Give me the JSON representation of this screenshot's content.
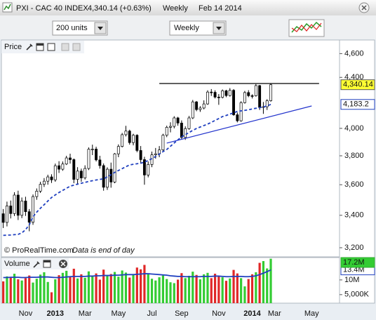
{
  "header": {
    "title": "PXI - CAC 40 INDEX",
    "quote": "4,340.14 (+0.63%)",
    "period": "Weekly",
    "date": "Feb 14 2014"
  },
  "toolbar": {
    "units": "200 units",
    "period": "Weekly"
  },
  "chart_data": [
    {
      "type": "candlestick",
      "title": "Price",
      "log_scale": true,
      "ylim": [
        3150,
        4700
      ],
      "yticks": [
        {
          "value": 3200,
          "label": "3,200"
        },
        {
          "value": 3400,
          "label": "3,400"
        },
        {
          "value": 3600,
          "label": "3,600"
        },
        {
          "value": 3800,
          "label": "3,800"
        },
        {
          "value": 4000,
          "label": "4,000"
        },
        {
          "value": 4400,
          "label": "4,400"
        },
        {
          "value": 4600,
          "label": "4,600"
        }
      ],
      "up_color": "#ffffff",
      "down_color": "#000000",
      "label_color": "#ffff33",
      "open": [
        3410,
        3355,
        3460,
        3411,
        3531,
        3400,
        3492,
        3423,
        3356,
        3521,
        3557,
        3603,
        3624,
        3653,
        3633,
        3730,
        3706,
        3742,
        3785,
        3773,
        3636,
        3693,
        3646,
        3711,
        3847,
        3848,
        3771,
        3731,
        3583,
        3706,
        3618,
        3814,
        3867,
        3953,
        3980,
        3895,
        3949,
        3838,
        3773,
        3666,
        3739,
        3807,
        3814,
        3842,
        3949,
        4008,
        4015,
        4079,
        4040,
        3933,
        3998,
        4079,
        4203,
        4143,
        4155,
        4187,
        4281,
        4279,
        4241,
        4239,
        4291,
        4253,
        4295,
        4103,
        4057,
        4197,
        4277,
        4252,
        4251,
        4333,
        4160,
        4165,
        4212,
        null,
        null,
        null,
        null,
        null,
        null,
        null,
        null,
        null,
        null,
        null,
        null,
        null,
        null,
        null,
        null,
        null,
        null
      ],
      "high": [
        3440,
        3488,
        3495,
        3550,
        3560,
        3515,
        3520,
        3440,
        3535,
        3575,
        3620,
        3645,
        3668,
        3671,
        3745,
        3762,
        3760,
        3800,
        3815,
        3781,
        3720,
        3710,
        3733,
        3860,
        3880,
        3865,
        3800,
        3746,
        3719,
        3752,
        3820,
        3882,
        3966,
        4019,
        3990,
        3960,
        3956,
        3870,
        3793,
        3760,
        3830,
        3856,
        3870,
        3960,
        4020,
        4046,
        4092,
        4087,
        4060,
        4015,
        4094,
        4218,
        4210,
        4170,
        4215,
        4295,
        4305,
        4295,
        4265,
        4302,
        4299,
        4313,
        4305,
        4120,
        4208,
        4290,
        4296,
        4263,
        4345,
        4338,
        4202,
        4224,
        4353,
        null,
        null,
        null,
        null,
        null,
        null,
        null,
        null,
        null,
        null,
        null,
        null,
        null,
        null,
        null,
        null,
        null,
        null
      ],
      "low": [
        3320,
        3330,
        3380,
        3395,
        3370,
        3382,
        3396,
        3300,
        3340,
        3500,
        3545,
        3585,
        3600,
        3612,
        3620,
        3680,
        3695,
        3735,
        3745,
        3610,
        3600,
        3620,
        3635,
        3700,
        3805,
        3760,
        3710,
        3560,
        3565,
        3580,
        3610,
        3790,
        3860,
        3940,
        3880,
        3875,
        3825,
        3745,
        3600,
        3650,
        3720,
        3780,
        3790,
        3835,
        3935,
        3970,
        4000,
        4020,
        3920,
        3915,
        3990,
        4070,
        4130,
        4125,
        4145,
        4180,
        4250,
        4230,
        4180,
        4230,
        4240,
        4245,
        4095,
        4045,
        4050,
        4190,
        4240,
        4230,
        4245,
        4140,
        4110,
        4140,
        4205,
        null,
        null,
        null,
        null,
        null,
        null,
        null,
        null,
        null,
        null,
        null,
        null,
        null,
        null,
        null,
        null,
        null,
        null
      ],
      "close": [
        3355,
        3460,
        3411,
        3531,
        3400,
        3492,
        3423,
        3356,
        3521,
        3557,
        3603,
        3624,
        3653,
        3633,
        3730,
        3706,
        3742,
        3785,
        3773,
        3636,
        3693,
        3646,
        3711,
        3847,
        3848,
        3771,
        3731,
        3583,
        3706,
        3618,
        3814,
        3867,
        3953,
        3980,
        3895,
        3949,
        3838,
        3773,
        3666,
        3739,
        3807,
        3814,
        3842,
        3949,
        4008,
        4015,
        4079,
        4040,
        3933,
        3998,
        4079,
        4203,
        4143,
        4155,
        4187,
        4281,
        4279,
        4241,
        4239,
        4291,
        4253,
        4295,
        4103,
        4057,
        4197,
        4277,
        4252,
        4251,
        4333,
        4160,
        4165,
        4212,
        4340.14,
        null,
        null,
        null,
        null,
        null,
        null,
        null,
        null,
        null,
        null,
        null,
        null,
        null,
        null,
        null,
        null,
        null,
        null
      ],
      "close_labels": [
        null,
        null,
        null,
        null,
        null,
        null,
        null,
        null,
        null,
        null,
        null,
        null,
        null,
        null,
        null,
        null,
        null,
        null,
        null,
        null,
        null,
        null,
        null,
        null,
        null,
        null,
        null,
        null,
        null,
        null,
        null,
        null,
        null,
        null,
        null,
        null,
        null,
        null,
        null,
        null,
        null,
        null,
        null,
        null,
        null,
        null,
        null,
        null,
        null,
        null,
        null,
        null,
        null,
        null,
        null,
        null,
        null,
        null,
        null,
        null,
        null,
        null,
        null,
        null,
        null,
        null,
        null,
        null,
        null,
        null,
        null,
        null,
        "4,340.14",
        null,
        null,
        null,
        null,
        null,
        null,
        null,
        null,
        null,
        null,
        null,
        null,
        null,
        null,
        null,
        null,
        null,
        null
      ],
      "lines": [
        {
          "color": "#1f3fbf",
          "dashed": true,
          "values": [
            3275,
            3276,
            3277,
            3279,
            3281,
            3290,
            3310,
            3340,
            3390,
            3420,
            3445,
            3468,
            3492,
            3515,
            3532,
            3548,
            3562,
            3576,
            3590,
            3597,
            3604,
            3610,
            3616,
            3622,
            3627,
            3632,
            3636,
            3640,
            3653,
            3668,
            3684,
            3697,
            3710,
            3723,
            3736,
            3740,
            3744,
            3748,
            3755,
            3767,
            3780,
            3795,
            3812,
            3830,
            3845,
            3868,
            3892,
            3915,
            3937,
            3953,
            3969,
            3985,
            3999,
            4010,
            4021,
            4032,
            4045,
            4060,
            4074,
            4089,
            4098,
            4108,
            4118,
            4129,
            4133,
            4137,
            4141,
            4148,
            4153,
            4158,
            4163,
            4172,
            4183.2,
            null,
            null,
            null,
            null,
            null,
            null,
            null,
            null,
            null,
            null,
            null,
            null,
            null,
            null,
            null,
            null,
            null,
            null
          ],
          "value_labels": [
            null,
            null,
            null,
            null,
            null,
            null,
            null,
            null,
            null,
            null,
            null,
            null,
            null,
            null,
            null,
            null,
            null,
            null,
            null,
            null,
            null,
            null,
            null,
            null,
            null,
            null,
            null,
            null,
            null,
            null,
            null,
            null,
            null,
            null,
            null,
            null,
            null,
            null,
            null,
            null,
            null,
            null,
            null,
            null,
            null,
            null,
            null,
            null,
            null,
            null,
            null,
            null,
            null,
            null,
            null,
            null,
            null,
            null,
            null,
            null,
            null,
            null,
            null,
            null,
            null,
            null,
            null,
            null,
            null,
            null,
            null,
            null,
            "4,183.2",
            null,
            null,
            null,
            null,
            null,
            null,
            null,
            null,
            null,
            null,
            null,
            null,
            null,
            null,
            null,
            null,
            null,
            null
          ]
        }
      ],
      "trendlines": [
        {
          "color": "#000000",
          "x": [
            42,
            85
          ],
          "values": [
            4350,
            4350
          ]
        },
        {
          "color": "#2233cc",
          "x": [
            44,
            83
          ],
          "values": [
            3891,
            4171
          ]
        }
      ],
      "source": "© ProRealTime.com",
      "note": "Data is end of day"
    },
    {
      "type": "bar",
      "title": "Volume",
      "ylim": [
        2100000,
        17600000
      ],
      "yticks": [
        {
          "value": 5000000,
          "label": "5,000K"
        },
        {
          "value": 10000000,
          "label": "10M"
        }
      ],
      "up_color": "#33cc33",
      "down_color": "#e02828",
      "categories": [
        null,
        null,
        null,
        null,
        null,
        null,
        "Nov",
        null,
        null,
        null,
        null,
        null,
        null,
        null,
        "2013",
        null,
        null,
        null,
        null,
        null,
        null,
        null,
        "Mar",
        null,
        null,
        null,
        null,
        null,
        null,
        null,
        null,
        "May",
        null,
        null,
        null,
        null,
        null,
        null,
        null,
        null,
        "Jul",
        null,
        null,
        null,
        null,
        null,
        null,
        null,
        "Sep",
        null,
        null,
        null,
        null,
        null,
        null,
        null,
        null,
        null,
        "Nov",
        null,
        null,
        null,
        null,
        null,
        null,
        null,
        null,
        "2014",
        null,
        null,
        null,
        null,
        null,
        "Mar",
        null,
        null,
        null,
        null,
        null,
        null,
        null,
        null,
        null,
        "May",
        null,
        null,
        null,
        null,
        null,
        null,
        null
      ],
      "values": [
        9500000,
        11200000,
        10800000,
        12100000,
        10200000,
        9800000,
        10600000,
        11500000,
        9100000,
        10400000,
        11800000,
        12600000,
        9300000,
        5800000,
        10200000,
        11600000,
        12400000,
        13100000,
        11000000,
        13800000,
        10500000,
        11900000,
        10700000,
        12900000,
        11300000,
        12200000,
        10100000,
        13500000,
        11400000,
        12000000,
        12700000,
        11100000,
        13200000,
        12500000,
        10800000,
        11700000,
        14200000,
        13600000,
        15100000,
        11900000,
        10400000,
        9800000,
        10900000,
        11500000,
        10300000,
        9200000,
        8900000,
        10100000,
        12300000,
        10600000,
        11400000,
        12800000,
        11700000,
        10200000,
        11900000,
        12400000,
        10600000,
        12100000,
        11300000,
        10900000,
        9700000,
        10500000,
        13400000,
        12200000,
        10600000,
        7800000,
        10300000,
        11900000,
        12600000,
        15800000,
        16400000,
        13900000,
        17200000,
        null,
        null,
        null,
        null,
        null,
        null,
        null,
        null,
        null,
        null,
        null,
        null,
        null,
        null,
        null,
        null,
        null,
        null
      ],
      "value_labels": [
        null,
        null,
        null,
        null,
        null,
        null,
        null,
        null,
        null,
        null,
        null,
        null,
        null,
        null,
        null,
        null,
        null,
        null,
        null,
        null,
        null,
        null,
        null,
        null,
        null,
        null,
        null,
        null,
        null,
        null,
        null,
        null,
        null,
        null,
        null,
        null,
        null,
        null,
        null,
        null,
        null,
        null,
        null,
        null,
        null,
        null,
        null,
        null,
        null,
        null,
        null,
        null,
        null,
        null,
        null,
        null,
        null,
        null,
        null,
        null,
        null,
        null,
        null,
        null,
        null,
        null,
        null,
        null,
        null,
        null,
        null,
        null,
        "17.2M",
        null,
        null,
        null,
        null,
        null,
        null,
        null,
        null,
        null,
        null,
        null,
        null,
        null,
        null,
        null,
        null,
        null,
        null
      ],
      "lines": [
        {
          "color": "#1f3fbf",
          "dashed": false,
          "values": [
            10800000,
            10800000,
            10900000,
            10900000,
            10900000,
            10800000,
            10800000,
            10900000,
            10900000,
            10900000,
            11000000,
            11000000,
            11000000,
            10900000,
            10800000,
            10800000,
            10900000,
            11000000,
            11100000,
            11200000,
            11200000,
            11200000,
            11200000,
            11300000,
            11300000,
            11400000,
            11400000,
            11500000,
            11500000,
            11500000,
            11600000,
            11600000,
            11700000,
            11800000,
            11800000,
            11800000,
            11900000,
            12000000,
            12100000,
            12100000,
            12000000,
            11900000,
            11800000,
            11700000,
            11600000,
            11400000,
            11300000,
            11200000,
            11200000,
            11100000,
            11100000,
            11100000,
            11100000,
            11100000,
            11200000,
            11200000,
            11200000,
            11300000,
            11300000,
            11200000,
            11100000,
            11100000,
            11200000,
            11200000,
            11200000,
            11100000,
            11100000,
            11200000,
            11400000,
            11800000,
            12300000,
            12800000,
            13400000,
            null,
            null,
            null,
            null,
            null,
            null,
            null,
            null,
            null,
            null,
            null,
            null,
            null,
            null,
            null,
            null,
            null,
            null
          ],
          "value_labels": [
            null,
            null,
            null,
            null,
            null,
            null,
            null,
            null,
            null,
            null,
            null,
            null,
            null,
            null,
            null,
            null,
            null,
            null,
            null,
            null,
            null,
            null,
            null,
            null,
            null,
            null,
            null,
            null,
            null,
            null,
            null,
            null,
            null,
            null,
            null,
            null,
            null,
            null,
            null,
            null,
            null,
            null,
            null,
            null,
            null,
            null,
            null,
            null,
            null,
            null,
            null,
            null,
            null,
            null,
            null,
            null,
            null,
            null,
            null,
            null,
            null,
            null,
            null,
            null,
            null,
            null,
            null,
            null,
            null,
            null,
            null,
            null,
            "13.4M",
            null,
            null,
            null,
            null,
            null,
            null,
            null,
            null,
            null,
            null,
            null,
            null,
            null,
            null,
            null,
            null,
            null,
            null
          ]
        }
      ]
    }
  ]
}
